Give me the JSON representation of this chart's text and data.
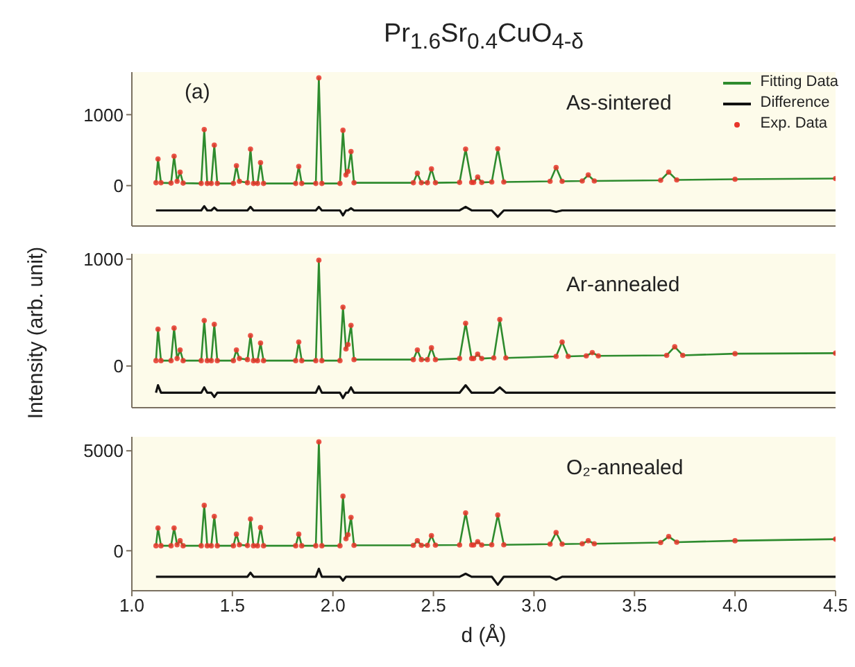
{
  "chart_data": [
    {
      "type": "line",
      "title": "Pr$_{1.6}$Sr$_{0.4}$CuO$_{4-δ}$",
      "annotations": [
        "(a)",
        "As-sintered"
      ],
      "legend": "top right",
      "tick_labels": "y",
      "xlim": [
        1.0,
        4.5
      ],
      "xticks": [
        1,
        1.5,
        2,
        2.5,
        3,
        3.5,
        4,
        4.5
      ],
      "ylim": [
        -570,
        1600
      ],
      "yticks": [
        0,
        1000
      ],
      "x": [
        1.12,
        1.13,
        1.145,
        1.195,
        1.21,
        1.225,
        1.24,
        1.255,
        1.345,
        1.36,
        1.375,
        1.395,
        1.41,
        1.425,
        1.505,
        1.52,
        1.535,
        1.575,
        1.59,
        1.605,
        1.625,
        1.64,
        1.655,
        1.815,
        1.83,
        1.845,
        1.915,
        1.93,
        1.945,
        2.035,
        2.05,
        2.065,
        2.075,
        2.09,
        2.105,
        2.4,
        2.42,
        2.44,
        2.47,
        2.49,
        2.51,
        2.63,
        2.66,
        2.69,
        2.7,
        2.72,
        2.74,
        2.79,
        2.82,
        2.85,
        3.08,
        3.11,
        3.14,
        3.24,
        3.27,
        3.3,
        3.63,
        3.67,
        3.71,
        4.0,
        4.5
      ],
      "series": [
        {
          "name": "Fitting Data",
          "color": "#2e8b2e",
          "values": [
            40,
            375,
            40,
            35,
            415,
            60,
            190,
            35,
            30,
            790,
            30,
            30,
            570,
            30,
            30,
            280,
            60,
            40,
            515,
            30,
            30,
            325,
            30,
            30,
            270,
            30,
            30,
            1520,
            30,
            30,
            780,
            150,
            200,
            480,
            40,
            40,
            175,
            40,
            40,
            235,
            40,
            45,
            515,
            45,
            45,
            120,
            45,
            50,
            520,
            50,
            60,
            255,
            60,
            65,
            150,
            65,
            75,
            190,
            80,
            90,
            100
          ]
        },
        {
          "name": "Difference",
          "color": "#111111",
          "values": [
            -350,
            -350,
            -350,
            -350,
            -350,
            -350,
            -350,
            -350,
            -350,
            -290,
            -350,
            -350,
            -310,
            -350,
            -350,
            -350,
            -350,
            -350,
            -300,
            -350,
            -350,
            -350,
            -350,
            -350,
            -350,
            -350,
            -350,
            -300,
            -350,
            -350,
            -420,
            -350,
            -350,
            -320,
            -350,
            -350,
            -350,
            -350,
            -350,
            -350,
            -350,
            -350,
            -300,
            -350,
            -350,
            -350,
            -350,
            -350,
            -440,
            -350,
            -350,
            -370,
            -350,
            -350,
            -350,
            -350,
            -350,
            -350,
            -350,
            -350,
            -350
          ]
        },
        {
          "name": "Exp. Data",
          "type": "scatter",
          "marker": "circle",
          "color": "#e8352a",
          "values": [
            40,
            375,
            40,
            35,
            415,
            60,
            190,
            35,
            30,
            790,
            30,
            30,
            570,
            30,
            30,
            280,
            60,
            40,
            515,
            30,
            30,
            325,
            30,
            30,
            270,
            30,
            30,
            1520,
            30,
            30,
            780,
            150,
            200,
            480,
            40,
            40,
            175,
            40,
            40,
            235,
            40,
            45,
            515,
            45,
            45,
            120,
            45,
            50,
            520,
            50,
            60,
            255,
            60,
            65,
            150,
            65,
            75,
            190,
            80,
            90,
            100
          ]
        }
      ]
    },
    {
      "type": "line",
      "ylabel": "Intensity (arb. unit)",
      "annotations": [
        "Ar-annealed"
      ],
      "tick_labels": "y",
      "xlim": [
        1.0,
        4.5
      ],
      "xticks": [
        1,
        1.5,
        2,
        2.5,
        3,
        3.5,
        4,
        4.5
      ],
      "ylim": [
        -390,
        1050
      ],
      "yticks": [
        0,
        1000
      ],
      "x": [
        1.12,
        1.13,
        1.145,
        1.195,
        1.21,
        1.225,
        1.24,
        1.255,
        1.345,
        1.36,
        1.375,
        1.395,
        1.41,
        1.425,
        1.505,
        1.52,
        1.535,
        1.575,
        1.59,
        1.605,
        1.625,
        1.64,
        1.655,
        1.815,
        1.83,
        1.845,
        1.915,
        1.93,
        1.945,
        2.035,
        2.05,
        2.065,
        2.075,
        2.09,
        2.105,
        2.4,
        2.42,
        2.44,
        2.47,
        2.49,
        2.51,
        2.63,
        2.66,
        2.69,
        2.7,
        2.72,
        2.74,
        2.8,
        2.83,
        2.86,
        3.11,
        3.14,
        3.17,
        3.26,
        3.29,
        3.32,
        3.66,
        3.7,
        3.74,
        4.0,
        4.5
      ],
      "series": [
        {
          "color": "#2e8b2e",
          "values": [
            50,
            345,
            50,
            50,
            355,
            70,
            150,
            50,
            50,
            425,
            50,
            50,
            390,
            50,
            50,
            150,
            70,
            60,
            285,
            50,
            50,
            215,
            50,
            50,
            225,
            50,
            50,
            990,
            50,
            50,
            550,
            160,
            200,
            380,
            60,
            60,
            150,
            60,
            60,
            170,
            60,
            70,
            400,
            70,
            70,
            110,
            70,
            75,
            435,
            75,
            90,
            225,
            90,
            95,
            125,
            95,
            100,
            180,
            100,
            115,
            120
          ]
        },
        {
          "color": "#111111",
          "values": [
            -250,
            -180,
            -250,
            -250,
            -250,
            -250,
            -250,
            -250,
            -250,
            -200,
            -250,
            -250,
            -290,
            -250,
            -250,
            -250,
            -250,
            -250,
            -250,
            -250,
            -250,
            -250,
            -250,
            -250,
            -250,
            -250,
            -250,
            -190,
            -250,
            -250,
            -300,
            -250,
            -250,
            -200,
            -250,
            -250,
            -250,
            -250,
            -250,
            -250,
            -250,
            -250,
            -180,
            -250,
            -250,
            -250,
            -250,
            -250,
            -200,
            -250,
            -250,
            -250,
            -250,
            -250,
            -250,
            -250,
            -250,
            -250,
            -250,
            -250,
            -250
          ]
        },
        {
          "type": "scatter",
          "marker": "circle",
          "color": "#e8352a",
          "values": [
            50,
            345,
            50,
            50,
            355,
            70,
            150,
            50,
            50,
            425,
            50,
            50,
            390,
            50,
            50,
            150,
            70,
            60,
            285,
            50,
            50,
            215,
            50,
            50,
            225,
            50,
            50,
            990,
            50,
            50,
            550,
            160,
            200,
            380,
            60,
            60,
            150,
            60,
            60,
            170,
            60,
            70,
            400,
            70,
            70,
            110,
            70,
            75,
            435,
            75,
            90,
            225,
            90,
            95,
            125,
            95,
            100,
            180,
            100,
            115,
            120
          ]
        }
      ]
    },
    {
      "type": "line",
      "xlabel": "d (Å)",
      "annotations": [
        "O₂-annealed"
      ],
      "xlim": [
        1.0,
        4.5
      ],
      "xticks": [
        {
          "value": 1,
          "label": "1.0"
        },
        1.5,
        {
          "value": 2,
          "label": "2.0"
        },
        2.5,
        {
          "value": 3,
          "label": "3.0"
        },
        3.5,
        {
          "value": 4,
          "label": "4.0"
        },
        4.5
      ],
      "ylim": [
        -2000,
        5700
      ],
      "yticks": [
        0,
        5000
      ],
      "x": [
        1.12,
        1.13,
        1.145,
        1.195,
        1.21,
        1.225,
        1.24,
        1.255,
        1.345,
        1.36,
        1.375,
        1.395,
        1.41,
        1.425,
        1.505,
        1.52,
        1.535,
        1.575,
        1.59,
        1.605,
        1.625,
        1.64,
        1.655,
        1.815,
        1.83,
        1.845,
        1.915,
        1.93,
        1.945,
        2.035,
        2.05,
        2.065,
        2.075,
        2.09,
        2.105,
        2.4,
        2.42,
        2.44,
        2.47,
        2.49,
        2.51,
        2.63,
        2.66,
        2.69,
        2.7,
        2.72,
        2.74,
        2.79,
        2.82,
        2.85,
        3.08,
        3.11,
        3.14,
        3.24,
        3.27,
        3.3,
        3.63,
        3.67,
        3.71,
        4.0,
        4.5
      ],
      "series": [
        {
          "color": "#2e8b2e",
          "values": [
            250,
            1140,
            250,
            250,
            1140,
            300,
            500,
            250,
            250,
            2270,
            250,
            250,
            1720,
            250,
            250,
            830,
            300,
            260,
            1590,
            250,
            250,
            1160,
            250,
            250,
            830,
            250,
            250,
            5450,
            250,
            250,
            2730,
            600,
            800,
            1670,
            270,
            270,
            500,
            270,
            270,
            760,
            280,
            290,
            1890,
            290,
            290,
            450,
            290,
            300,
            1790,
            300,
            330,
            910,
            330,
            350,
            500,
            350,
            410,
            710,
            430,
            500,
            580
          ]
        },
        {
          "color": "#111111",
          "values": [
            -1300,
            -1300,
            -1300,
            -1300,
            -1300,
            -1300,
            -1300,
            -1300,
            -1300,
            -1300,
            -1300,
            -1300,
            -1300,
            -1300,
            -1300,
            -1300,
            -1300,
            -1300,
            -1100,
            -1300,
            -1300,
            -1300,
            -1300,
            -1300,
            -1300,
            -1300,
            -1300,
            -900,
            -1300,
            -1300,
            -1500,
            -1300,
            -1300,
            -1300,
            -1300,
            -1300,
            -1300,
            -1300,
            -1300,
            -1300,
            -1300,
            -1300,
            -1150,
            -1300,
            -1300,
            -1300,
            -1300,
            -1300,
            -1700,
            -1300,
            -1300,
            -1450,
            -1300,
            -1300,
            -1300,
            -1300,
            -1300,
            -1300,
            -1300,
            -1300,
            -1300
          ]
        },
        {
          "type": "scatter",
          "marker": "circle",
          "color": "#e8352a",
          "values": [
            250,
            1140,
            250,
            250,
            1140,
            300,
            500,
            250,
            250,
            2270,
            250,
            250,
            1720,
            250,
            250,
            830,
            300,
            260,
            1590,
            250,
            250,
            1160,
            250,
            250,
            830,
            250,
            250,
            5450,
            250,
            250,
            2730,
            600,
            800,
            1670,
            270,
            270,
            500,
            270,
            270,
            760,
            280,
            290,
            1890,
            290,
            290,
            450,
            290,
            300,
            1790,
            300,
            330,
            910,
            330,
            350,
            500,
            350,
            410,
            710,
            430,
            500,
            580
          ]
        }
      ]
    }
  ]
}
